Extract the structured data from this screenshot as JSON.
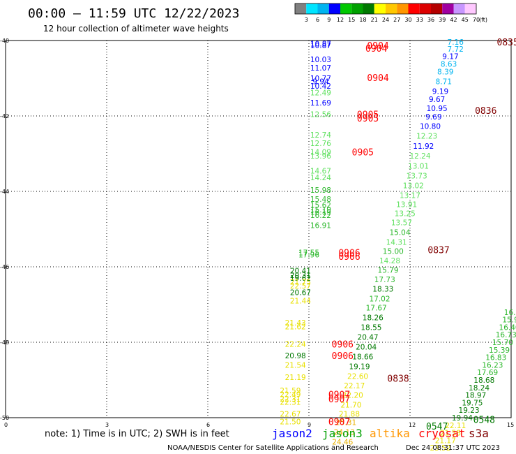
{
  "header": {
    "title": "00:00 — 11:59 UTC 12/22/2023",
    "subtitle": "12 hour collection of altimeter wave heights"
  },
  "colorbar": {
    "labels": [
      "3",
      "6",
      "9",
      "12",
      "15",
      "18",
      "21",
      "24",
      "27",
      "30",
      "33",
      "36",
      "39",
      "42",
      "45",
      "70",
      "(ft)"
    ],
    "colors": [
      "#808080",
      "#00e5ff",
      "#00b4f0",
      "#0000ff",
      "#00c800",
      "#00a000",
      "#007800",
      "#ffff00",
      "#ffc800",
      "#ff9600",
      "#ff0000",
      "#dc0000",
      "#b40000",
      "#a000a0",
      "#c896ff",
      "#ffc8ff"
    ]
  },
  "chart_data": {
    "type": "scatter",
    "x_ticks": [
      "0",
      "3",
      "6",
      "9",
      "12",
      "15"
    ],
    "y_ticks": [
      "40",
      "42",
      "44",
      "46",
      "48",
      "50"
    ],
    "xlim": [
      0,
      15
    ],
    "ylim": [
      40,
      50
    ],
    "grid": true,
    "value_colors": [
      {
        "max": 3,
        "color": "#808080"
      },
      {
        "max": 6,
        "color": "#00e5ff"
      },
      {
        "max": 9,
        "color": "#00b4f0"
      },
      {
        "max": 12,
        "color": "#0000ff"
      },
      {
        "max": 15,
        "color": "#5ee05e"
      },
      {
        "max": 18,
        "color": "#2db82d"
      },
      {
        "max": 21,
        "color": "#007800"
      },
      {
        "max": 24,
        "color": "#e8e000"
      },
      {
        "max": 27,
        "color": "#e8b000"
      },
      {
        "max": 30,
        "color": "#ff9600"
      }
    ],
    "points": [
      {
        "x": 9.35,
        "y": 40.08,
        "v": "10.87"
      },
      {
        "x": 9.35,
        "y": 40.13,
        "v": "10.87"
      },
      {
        "x": 9.35,
        "y": 40.5,
        "v": "10.03"
      },
      {
        "x": 9.35,
        "y": 40.72,
        "v": "11.07"
      },
      {
        "x": 9.35,
        "y": 41.0,
        "v": "10.77"
      },
      {
        "x": 9.35,
        "y": 41.08,
        "v": "9.94"
      },
      {
        "x": 9.35,
        "y": 41.2,
        "v": "10.42"
      },
      {
        "x": 9.35,
        "y": 41.38,
        "v": "12.49"
      },
      {
        "x": 9.35,
        "y": 41.65,
        "v": "11.69"
      },
      {
        "x": 9.35,
        "y": 41.95,
        "v": "12.56"
      },
      {
        "x": 9.35,
        "y": 42.5,
        "v": "12.74"
      },
      {
        "x": 9.35,
        "y": 42.72,
        "v": "12.76"
      },
      {
        "x": 9.35,
        "y": 42.95,
        "v": "14.09"
      },
      {
        "x": 9.35,
        "y": 43.06,
        "v": "13.96"
      },
      {
        "x": 9.35,
        "y": 43.45,
        "v": "14.67"
      },
      {
        "x": 9.35,
        "y": 43.63,
        "v": "14.24"
      },
      {
        "x": 9.35,
        "y": 43.96,
        "v": "15.98"
      },
      {
        "x": 9.35,
        "y": 44.2,
        "v": "15.48"
      },
      {
        "x": 9.35,
        "y": 44.36,
        "v": "15.62"
      },
      {
        "x": 9.35,
        "y": 44.48,
        "v": "15.19"
      },
      {
        "x": 9.35,
        "y": 44.55,
        "v": "16.19"
      },
      {
        "x": 9.35,
        "y": 44.63,
        "v": "16.22"
      },
      {
        "x": 9.35,
        "y": 44.9,
        "v": "16.91"
      },
      {
        "x": 9.0,
        "y": 45.62,
        "v": "17.55"
      },
      {
        "x": 9.0,
        "y": 45.68,
        "v": "17.96"
      },
      {
        "x": 8.75,
        "y": 46.1,
        "v": "20.41"
      },
      {
        "x": 8.75,
        "y": 46.22,
        "v": "20.31"
      },
      {
        "x": 8.75,
        "y": 46.3,
        "v": "19.62"
      },
      {
        "x": 8.75,
        "y": 46.4,
        "v": "21.75"
      },
      {
        "x": 8.75,
        "y": 46.5,
        "v": "22.57"
      },
      {
        "x": 8.75,
        "y": 46.68,
        "v": "20.67"
      },
      {
        "x": 8.75,
        "y": 46.9,
        "v": "21.44"
      },
      {
        "x": 8.6,
        "y": 47.48,
        "v": "21.43"
      },
      {
        "x": 8.6,
        "y": 47.58,
        "v": "21.62"
      },
      {
        "x": 8.6,
        "y": 48.05,
        "v": "22.24"
      },
      {
        "x": 8.6,
        "y": 48.35,
        "v": "20.98"
      },
      {
        "x": 8.6,
        "y": 48.6,
        "v": "21.54"
      },
      {
        "x": 8.6,
        "y": 48.93,
        "v": "21.19"
      },
      {
        "x": 8.45,
        "y": 49.28,
        "v": "21.59"
      },
      {
        "x": 8.45,
        "y": 49.38,
        "v": "22.49"
      },
      {
        "x": 8.45,
        "y": 49.5,
        "v": "22.31"
      },
      {
        "x": 8.45,
        "y": 49.58,
        "v": "22.31"
      },
      {
        "x": 8.45,
        "y": 49.9,
        "v": "22.67"
      },
      {
        "x": 8.45,
        "y": 50.1,
        "v": "21.50"
      },
      {
        "x": 13.35,
        "y": 40.04,
        "v": "7.16"
      },
      {
        "x": 13.35,
        "y": 40.22,
        "v": "7.72"
      },
      {
        "x": 13.2,
        "y": 40.42,
        "v": "9.17"
      },
      {
        "x": 13.15,
        "y": 40.62,
        "v": "8.63"
      },
      {
        "x": 13.05,
        "y": 40.82,
        "v": "8.39"
      },
      {
        "x": 13.0,
        "y": 41.08,
        "v": "8.71"
      },
      {
        "x": 12.9,
        "y": 41.34,
        "v": "9.19"
      },
      {
        "x": 12.8,
        "y": 41.56,
        "v": "9.67"
      },
      {
        "x": 12.8,
        "y": 41.8,
        "v": "10.95"
      },
      {
        "x": 12.7,
        "y": 42.02,
        "v": "9.69"
      },
      {
        "x": 12.6,
        "y": 42.27,
        "v": "10.80"
      },
      {
        "x": 12.5,
        "y": 42.53,
        "v": "12.23"
      },
      {
        "x": 12.4,
        "y": 42.8,
        "v": "11.92"
      },
      {
        "x": 12.3,
        "y": 43.06,
        "v": "12.24"
      },
      {
        "x": 12.25,
        "y": 43.32,
        "v": "13.01"
      },
      {
        "x": 12.2,
        "y": 43.58,
        "v": "13.73"
      },
      {
        "x": 12.1,
        "y": 43.84,
        "v": "13.02"
      },
      {
        "x": 12.0,
        "y": 44.1,
        "v": "13.17"
      },
      {
        "x": 11.9,
        "y": 44.34,
        "v": "13.91"
      },
      {
        "x": 11.85,
        "y": 44.58,
        "v": "13.25"
      },
      {
        "x": 11.75,
        "y": 44.82,
        "v": "13.57"
      },
      {
        "x": 11.7,
        "y": 45.08,
        "v": "15.04"
      },
      {
        "x": 11.6,
        "y": 45.34,
        "v": "14.31"
      },
      {
        "x": 11.5,
        "y": 45.58,
        "v": "15.00"
      },
      {
        "x": 11.4,
        "y": 45.83,
        "v": "14.28"
      },
      {
        "x": 11.35,
        "y": 46.08,
        "v": "15.79"
      },
      {
        "x": 11.25,
        "y": 46.33,
        "v": "17.73"
      },
      {
        "x": 11.2,
        "y": 46.58,
        "v": "18.33"
      },
      {
        "x": 11.1,
        "y": 46.84,
        "v": "17.02"
      },
      {
        "x": 11.0,
        "y": 47.08,
        "v": "17.67"
      },
      {
        "x": 10.9,
        "y": 47.34,
        "v": "18.26"
      },
      {
        "x": 10.85,
        "y": 47.6,
        "v": "18.55"
      },
      {
        "x": 10.75,
        "y": 47.86,
        "v": "20.47"
      },
      {
        "x": 10.7,
        "y": 48.12,
        "v": "20.04"
      },
      {
        "x": 10.6,
        "y": 48.38,
        "v": "18.66"
      },
      {
        "x": 10.5,
        "y": 48.64,
        "v": "19.19"
      },
      {
        "x": 10.45,
        "y": 48.9,
        "v": "22.60"
      },
      {
        "x": 10.35,
        "y": 49.15,
        "v": "22.17"
      },
      {
        "x": 10.3,
        "y": 49.4,
        "v": "22.20"
      },
      {
        "x": 10.25,
        "y": 49.66,
        "v": "21.70"
      },
      {
        "x": 10.2,
        "y": 49.9,
        "v": "21.88"
      },
      {
        "x": 10.1,
        "y": 50.12,
        "v": "25.31"
      },
      {
        "x": 10.05,
        "y": 50.38,
        "v": "24.13"
      },
      {
        "x": 10.0,
        "y": 50.64,
        "v": "24.46"
      },
      {
        "x": 15.1,
        "y": 47.2,
        "v": "16.04"
      },
      {
        "x": 15.05,
        "y": 47.4,
        "v": "15.92"
      },
      {
        "x": 14.95,
        "y": 47.6,
        "v": "16.40"
      },
      {
        "x": 14.85,
        "y": 47.8,
        "v": "16.73"
      },
      {
        "x": 14.75,
        "y": 48.0,
        "v": "15.70"
      },
      {
        "x": 14.65,
        "y": 48.2,
        "v": "15.39"
      },
      {
        "x": 14.55,
        "y": 48.4,
        "v": "16.83"
      },
      {
        "x": 14.45,
        "y": 48.6,
        "v": "16.23"
      },
      {
        "x": 14.3,
        "y": 48.8,
        "v": "17.69"
      },
      {
        "x": 14.2,
        "y": 49.0,
        "v": "18.68"
      },
      {
        "x": 14.05,
        "y": 49.2,
        "v": "18.24"
      },
      {
        "x": 13.95,
        "y": 49.4,
        "v": "18.97"
      },
      {
        "x": 13.85,
        "y": 49.6,
        "v": "19.75"
      },
      {
        "x": 13.75,
        "y": 49.8,
        "v": "19.23"
      },
      {
        "x": 13.55,
        "y": 50.0,
        "v": "19.94"
      },
      {
        "x": 13.35,
        "y": 50.2,
        "v": "22.11"
      },
      {
        "x": 13.2,
        "y": 50.4,
        "v": "21.58"
      },
      {
        "x": 13.05,
        "y": 50.6,
        "v": "21.17"
      },
      {
        "x": 12.9,
        "y": 50.8,
        "v": "23.52"
      }
    ],
    "pass_times": [
      {
        "x": 11.05,
        "y": 40.13,
        "t": "0904",
        "color": "#ff0000"
      },
      {
        "x": 11.0,
        "y": 40.2,
        "t": "0904",
        "color": "#ff0000"
      },
      {
        "x": 11.05,
        "y": 40.98,
        "t": "0904",
        "color": "#ff0000"
      },
      {
        "x": 10.75,
        "y": 41.95,
        "t": "0905",
        "color": "#ff0000"
      },
      {
        "x": 10.75,
        "y": 42.06,
        "t": "0905",
        "color": "#ff0000"
      },
      {
        "x": 10.6,
        "y": 42.95,
        "t": "0905",
        "color": "#ff0000"
      },
      {
        "x": 10.2,
        "y": 45.62,
        "t": "0906",
        "color": "#ff0000"
      },
      {
        "x": 10.2,
        "y": 45.72,
        "t": "0906",
        "color": "#ff0000"
      },
      {
        "x": 10.0,
        "y": 48.05,
        "t": "0906",
        "color": "#ff0000"
      },
      {
        "x": 10.0,
        "y": 48.35,
        "t": "0906",
        "color": "#ff0000"
      },
      {
        "x": 9.9,
        "y": 49.38,
        "t": "0907",
        "color": "#ff0000"
      },
      {
        "x": 9.9,
        "y": 49.5,
        "t": "0907",
        "color": "#ff0000"
      },
      {
        "x": 9.9,
        "y": 50.1,
        "t": "0907",
        "color": "#ff0000"
      },
      {
        "x": 14.9,
        "y": 40.04,
        "t": "0835",
        "color": "#800000"
      },
      {
        "x": 14.25,
        "y": 41.85,
        "t": "0836",
        "color": "#800000"
      },
      {
        "x": 12.85,
        "y": 45.55,
        "t": "0837",
        "color": "#800000"
      },
      {
        "x": 11.65,
        "y": 48.95,
        "t": "0838",
        "color": "#800000"
      },
      {
        "x": 14.2,
        "y": 50.05,
        "t": "0548",
        "color": "#007800"
      },
      {
        "x": 12.8,
        "y": 50.22,
        "t": "0547",
        "color": "#007800"
      }
    ]
  },
  "legend": {
    "note": "note: 1) Time is in UTC; 2) SWH is in feet",
    "satellites": [
      {
        "name": "jason2",
        "color": "#0000ff"
      },
      {
        "name": "jason3",
        "color": "#00a000"
      },
      {
        "name": "altika",
        "color": "#ff9600"
      },
      {
        "name": "cryosat",
        "color": "#ff0000"
      },
      {
        "name": "s3a",
        "color": "#800000"
      }
    ]
  },
  "footer": {
    "credit": "NOAA/NESDIS Center for Satellite Applications and Research",
    "timestamp": "Dec 24 08:31:37 UTC 2023"
  }
}
